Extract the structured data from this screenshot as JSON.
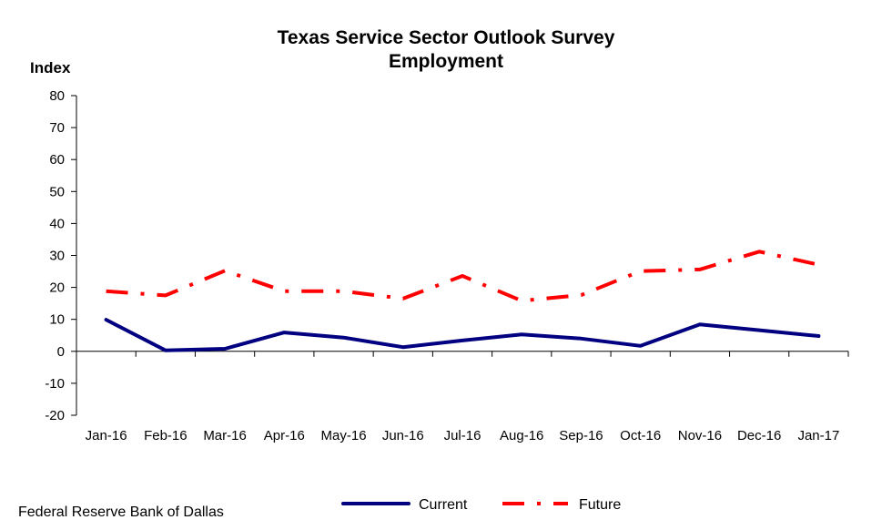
{
  "chart_data": {
    "type": "line",
    "title": "Texas Service Sector Outlook Survey",
    "subtitle": "Employment",
    "ylabel": "Index",
    "xlabel": "",
    "ylim": [
      -20,
      80
    ],
    "yticks": [
      80,
      70,
      60,
      50,
      40,
      30,
      20,
      10,
      0,
      -10,
      -20
    ],
    "categories": [
      "Jan-16",
      "Feb-16",
      "Mar-16",
      "Apr-16",
      "May-16",
      "Jun-16",
      "Jul-16",
      "Aug-16",
      "Sep-16",
      "Oct-16",
      "Nov-16",
      "Dec-16",
      "Jan-17"
    ],
    "series": [
      {
        "name": "Current",
        "color": "#000080",
        "style": "solid",
        "values": [
          9.9,
          0.3,
          0.8,
          5.9,
          4.3,
          1.3,
          3.4,
          5.3,
          4.0,
          1.7,
          8.4,
          6.6,
          4.8
        ]
      },
      {
        "name": "Future",
        "color": "#ff0000",
        "style": "dash-dot",
        "values": [
          18.8,
          17.5,
          25.2,
          18.8,
          18.8,
          16.5,
          23.6,
          15.8,
          17.6,
          25.1,
          25.6,
          31.2,
          27.1
        ]
      }
    ],
    "grid": false,
    "legend_position": "bottom-center"
  },
  "source": "Federal Reserve Bank of Dallas"
}
